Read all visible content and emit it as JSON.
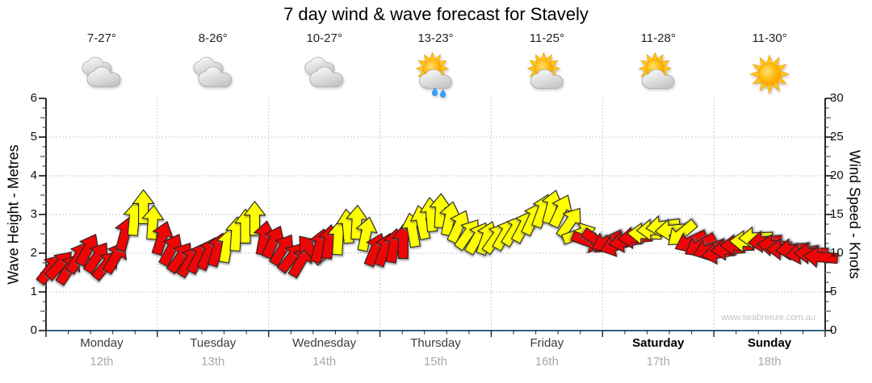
{
  "title": "7 day wind & wave forecast for Stavely",
  "watermark": "www.seabreeze.com.au",
  "colors": {
    "red": "#ee0606",
    "yellow": "#ffff00",
    "arrow_outline": "#222222",
    "axis_bottom": "#2e6483",
    "axis_side": "#111111",
    "grid": "#b9b9b9"
  },
  "left_axis": {
    "label": "Wave Height - Metres",
    "min": 0,
    "max": 6,
    "ticks": [
      0,
      1,
      2,
      3,
      4,
      5,
      6
    ]
  },
  "right_axis": {
    "label": "Wind Speed - Knots",
    "min": 0,
    "max": 30,
    "ticks": [
      0,
      5,
      10,
      15,
      20,
      25,
      30
    ]
  },
  "days": [
    {
      "name": "Monday",
      "date": "12th",
      "temp": "7-27°",
      "icon": "cloudy",
      "bold": false
    },
    {
      "name": "Tuesday",
      "date": "13th",
      "temp": "8-26°",
      "icon": "cloudy",
      "bold": false
    },
    {
      "name": "Wednesday",
      "date": "14th",
      "temp": "10-27°",
      "icon": "cloudy",
      "bold": false
    },
    {
      "name": "Thursday",
      "date": "15th",
      "temp": "13-23°",
      "icon": "partly-cloudy-rain",
      "bold": false
    },
    {
      "name": "Friday",
      "date": "16th",
      "temp": "11-25°",
      "icon": "partly-cloudy",
      "bold": false
    },
    {
      "name": "Saturday",
      "date": "17th",
      "temp": "11-28°",
      "icon": "partly-cloudy",
      "bold": true
    },
    {
      "name": "Sunday",
      "date": "18th",
      "temp": "11-30°",
      "icon": "sunny",
      "bold": true
    }
  ],
  "chart_data": {
    "type": "wind-arrows",
    "x_axis": "7 days, 12 samples per day",
    "wind_speed_axis_knots": [
      0,
      30
    ],
    "wave_height_axis_metres": [
      0,
      6
    ],
    "dir_convention": "degrees clockwise from pointing up (north)",
    "series": [
      {
        "day": "Monday",
        "speeds_kn": [
          8,
          8.5,
          8,
          9.5,
          10.5,
          9.5,
          8.5,
          9.5,
          12.5,
          14.5,
          16,
          14
        ],
        "dirs_deg": [
          38,
          42,
          34,
          30,
          28,
          34,
          40,
          30,
          15,
          5,
          0,
          4
        ],
        "colors": [
          "r",
          "r",
          "r",
          "r",
          "r",
          "r",
          "r",
          "r",
          "r",
          "y",
          "y",
          "y"
        ]
      },
      {
        "day": "Tuesday",
        "speeds_kn": [
          12,
          10.5,
          9.5,
          9,
          9.5,
          10,
          10.5,
          11,
          12.5,
          13.5,
          14.5,
          12
        ],
        "dirs_deg": [
          18,
          28,
          35,
          32,
          28,
          24,
          18,
          10,
          4,
          0,
          0,
          10
        ],
        "colors": [
          "r",
          "r",
          "r",
          "r",
          "r",
          "r",
          "r",
          "y",
          "y",
          "y",
          "y",
          "r"
        ]
      },
      {
        "day": "Wednesday",
        "speeds_kn": [
          11.5,
          10.5,
          9.5,
          9,
          10.5,
          11,
          11.5,
          12,
          13.5,
          14,
          12.5,
          10.5
        ],
        "dirs_deg": [
          25,
          32,
          38,
          30,
          -40,
          15,
          8,
          3,
          -5,
          3,
          12,
          22
        ],
        "colors": [
          "r",
          "r",
          "r",
          "r",
          "r",
          "r",
          "r",
          "y",
          "y",
          "y",
          "y",
          "r"
        ]
      },
      {
        "day": "Thursday",
        "speeds_kn": [
          10.5,
          11,
          11.5,
          13,
          14,
          15,
          15.5,
          14.5,
          13.5,
          12.5,
          12,
          12
        ],
        "dirs_deg": [
          20,
          10,
          0,
          -10,
          -12,
          -5,
          3,
          12,
          25,
          35,
          30,
          20
        ],
        "colors": [
          "r",
          "r",
          "r",
          "y",
          "y",
          "y",
          "y",
          "y",
          "y",
          "y",
          "y",
          "y"
        ]
      },
      {
        "day": "Friday",
        "speeds_kn": [
          12,
          12.5,
          13,
          13.5,
          14.5,
          15.5,
          16,
          15.5,
          14,
          12.5,
          11.5,
          11.5
        ],
        "dirs_deg": [
          35,
          30,
          32,
          28,
          25,
          20,
          15,
          25,
          35,
          70,
          110,
          125
        ],
        "colors": [
          "y",
          "y",
          "y",
          "y",
          "y",
          "y",
          "y",
          "y",
          "y",
          "y",
          "r",
          "r"
        ]
      },
      {
        "day": "Saturday",
        "speeds_kn": [
          11.5,
          11,
          11.5,
          12,
          12.5,
          13,
          13.5,
          13,
          12.5,
          11.5,
          11,
          10.5
        ],
        "dirs_deg": [
          -115,
          -108,
          -100,
          -95,
          -88,
          -92,
          -98,
          -95,
          -130,
          -115,
          -120,
          -110
        ],
        "colors": [
          "r",
          "r",
          "r",
          "r",
          "y",
          "y",
          "y",
          "y",
          "y",
          "r",
          "r",
          "r"
        ]
      },
      {
        "day": "Sunday",
        "speeds_kn": [
          10,
          10.5,
          11,
          11.5,
          12,
          11.5,
          11,
          10.5,
          10.5,
          10,
          10,
          9.5
        ],
        "dirs_deg": [
          -100,
          -95,
          -90,
          -88,
          -92,
          -95,
          -85,
          -90,
          -95,
          -100,
          -90,
          -85
        ],
        "colors": [
          "r",
          "r",
          "r",
          "y",
          "y",
          "r",
          "r",
          "r",
          "r",
          "r",
          "r",
          "r"
        ]
      }
    ]
  }
}
